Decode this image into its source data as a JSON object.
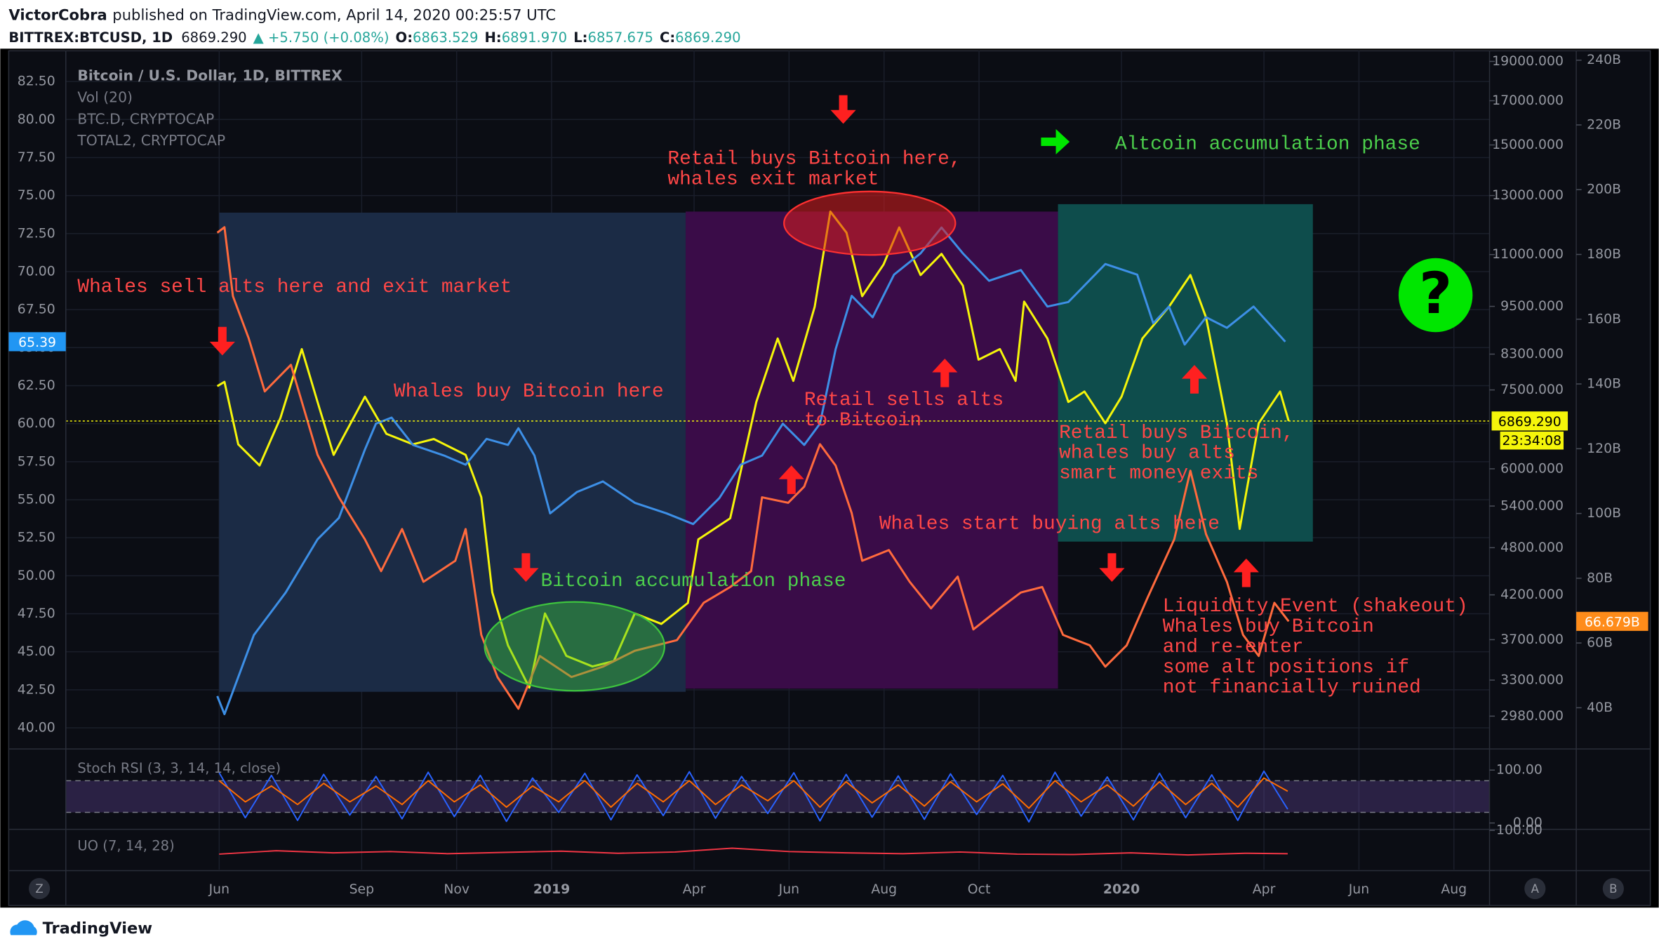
{
  "header": {
    "author": "VictorCobra",
    "published": "published on TradingView.com, April 14, 2020 00:25:57 UTC",
    "symbol": "BITTREX:BTCUSD, 1D",
    "last": "6869.290",
    "change": "▲ +5.750 (+0.08%)",
    "ohlc": [
      {
        "label": "O:",
        "value": "6863.529"
      },
      {
        "label": "H:",
        "value": "6891.970"
      },
      {
        "label": "L:",
        "value": "6857.675"
      },
      {
        "label": "C:",
        "value": "6869.290"
      }
    ]
  },
  "controls": [
    "Z",
    "A",
    "B"
  ],
  "footer": {
    "logo": "TradingView"
  },
  "chart_data": [
    {
      "type": "line",
      "grid": true,
      "volume_label": "Vol (20)",
      "countdown": "23:34:08",
      "badge": "?",
      "xlim": [
        1.77,
        31.75
      ],
      "xticks": [
        {
          "value": 5,
          "label": "Jun"
        },
        {
          "value": 8,
          "label": "Sep"
        },
        {
          "value": 10,
          "label": "Nov"
        },
        {
          "value": 12,
          "label": "2019"
        },
        {
          "value": 15,
          "label": "Apr"
        },
        {
          "value": 17,
          "label": "Jun"
        },
        {
          "value": 19,
          "label": "Aug"
        },
        {
          "value": 21,
          "label": "Oct"
        },
        {
          "value": 24,
          "label": "2020"
        },
        {
          "value": 27,
          "label": "Apr"
        },
        {
          "value": 29,
          "label": "Jun"
        },
        {
          "value": 31,
          "label": "Aug"
        }
      ],
      "ylim": [
        38.68,
        84.52
      ],
      "yticks": [
        {
          "value": 82.5,
          "label": "82.50"
        },
        {
          "value": 80,
          "label": "80.00"
        },
        {
          "value": 77.5,
          "label": "77.50"
        },
        {
          "value": 75,
          "label": "75.00"
        },
        {
          "value": 72.5,
          "label": "72.50"
        },
        {
          "value": 70,
          "label": "70.00"
        },
        {
          "value": 67.5,
          "label": "67.50"
        },
        {
          "value": 65,
          "label": "65.00"
        },
        {
          "value": 62.5,
          "label": "62.50"
        },
        {
          "value": 60,
          "label": "60.00"
        },
        {
          "value": 57.5,
          "label": "57.50"
        },
        {
          "value": 55,
          "label": "55.00"
        },
        {
          "value": 52.5,
          "label": "52.50"
        },
        {
          "value": 50,
          "label": "50.00"
        },
        {
          "value": 47.5,
          "label": "47.50"
        },
        {
          "value": 45,
          "label": "45.00"
        },
        {
          "value": 42.5,
          "label": "42.50"
        },
        {
          "value": 40,
          "label": "40.00"
        }
      ],
      "y2lim": [
        2724,
        19580
      ],
      "y2log": true,
      "y2ticks": [
        {
          "value": 19000,
          "label": "19000.000"
        },
        {
          "value": 17000,
          "label": "17000.000"
        },
        {
          "value": 15000,
          "label": "15000.000"
        },
        {
          "value": 13000,
          "label": "13000.000"
        },
        {
          "value": 11000,
          "label": "11000.000"
        },
        {
          "value": 9500,
          "label": "9500.000"
        },
        {
          "value": 8300,
          "label": "8300.000"
        },
        {
          "value": 7500,
          "label": "7500.000"
        },
        {
          "value": 6000,
          "label": "6000.000"
        },
        {
          "value": 5400,
          "label": "5400.000"
        },
        {
          "value": 4800,
          "label": "4800.000"
        },
        {
          "value": 4200,
          "label": "4200.000"
        },
        {
          "value": 3700,
          "label": "3700.000"
        },
        {
          "value": 3300,
          "label": "3300.000"
        },
        {
          "value": 2980,
          "label": "2980.000"
        }
      ],
      "y3lim": [
        27.6,
        242.9
      ],
      "y3ticks": [
        {
          "value": 240,
          "label": "240B"
        },
        {
          "value": 220,
          "label": "220B"
        },
        {
          "value": 200,
          "label": "200B"
        },
        {
          "value": 180,
          "label": "180B"
        },
        {
          "value": 160,
          "label": "160B"
        },
        {
          "value": 140,
          "label": "140B"
        },
        {
          "value": 120,
          "label": "120B"
        },
        {
          "value": 100,
          "label": "100B"
        },
        {
          "value": 80,
          "label": "80B"
        },
        {
          "value": 60,
          "label": "60B"
        },
        {
          "value": 40,
          "label": "40B"
        }
      ],
      "series": [
        {
          "name": "Bitcoin / U.S. Dollar, 1D, BITTREX",
          "color": "#f5f50a",
          "axis": "y2",
          "price_line": true,
          "x": [
            4.96,
            5.11,
            5.4,
            5.85,
            6.29,
            6.74,
            7.07,
            7.41,
            8.07,
            8.52,
            9.08,
            9.52,
            10.19,
            10.52,
            10.75,
            11.08,
            11.53,
            11.86,
            12.31,
            12.86,
            13.31,
            13.75,
            14.31,
            14.87,
            15.09,
            15.76,
            16.31,
            16.76,
            17.09,
            17.54,
            17.87,
            18.21,
            18.54,
            18.99,
            19.32,
            19.77,
            20.21,
            20.66,
            20.99,
            21.44,
            21.77,
            21.95,
            22.44,
            22.88,
            23.22,
            23.66,
            24.0,
            24.44,
            25.0,
            25.45,
            25.78,
            26.22,
            26.49,
            26.89,
            27.34,
            27.52
          ],
          "values": [
            7581,
            7672,
            6430,
            6057,
            6929,
            8419,
            7248,
            6241,
            7357,
            6625,
            6430,
            6527,
            6241,
            5537,
            4229,
            3642,
            3231,
            3985,
            3534,
            3430,
            3482,
            3985,
            3868,
            4105,
            4913,
            5216,
            7248,
            8674,
            7694,
            9489,
            12424,
            11703,
            9777,
            10696,
            11879,
            10380,
            11021,
            10074,
            8170,
            8419,
            7694,
            9629,
            8674,
            7248,
            7467,
            6826,
            7357,
            8674,
            9489,
            10380,
            9207,
            6826,
            5062,
            6826,
            7467,
            6869.29
          ],
          "value_labels": [
            null,
            null,
            null,
            null,
            null,
            null,
            null,
            null,
            null,
            null,
            null,
            null,
            null,
            null,
            null,
            null,
            null,
            null,
            null,
            null,
            null,
            null,
            null,
            null,
            null,
            null,
            null,
            null,
            null,
            null,
            null,
            null,
            null,
            null,
            null,
            null,
            null,
            null,
            null,
            null,
            null,
            null,
            null,
            null,
            null,
            null,
            null,
            null,
            null,
            null,
            null,
            null,
            null,
            null,
            null,
            "6869.290"
          ]
        },
        {
          "name": "BTC.D, CRYPTOCAP",
          "color": "#3d8fe6",
          "axis": "y",
          "x": [
            4.96,
            5.11,
            5.73,
            6.4,
            7.07,
            7.52,
            8.07,
            8.3,
            8.63,
            9.08,
            9.74,
            10.19,
            10.63,
            11.08,
            11.3,
            11.64,
            11.97,
            12.53,
            13.08,
            13.75,
            14.42,
            14.98,
            15.53,
            15.98,
            16.43,
            16.87,
            17.32,
            17.65,
            17.98,
            18.32,
            18.76,
            19.21,
            19.77,
            20.21,
            20.66,
            21.21,
            21.88,
            22.44,
            22.88,
            23.66,
            24.33,
            24.67,
            25.0,
            25.33,
            25.78,
            26.22,
            26.78,
            27.45
          ],
          "values": [
            42.09,
            40.9,
            46.1,
            48.9,
            52.4,
            53.8,
            58.3,
            60.0,
            60.4,
            58.6,
            57.9,
            57.3,
            59.0,
            58.6,
            59.7,
            57.9,
            54.1,
            55.5,
            56.2,
            54.8,
            54.1,
            53.4,
            55.1,
            57.3,
            57.9,
            60.0,
            58.6,
            60.0,
            64.9,
            68.4,
            67.0,
            69.8,
            71.2,
            72.9,
            71.2,
            69.4,
            70.1,
            67.7,
            68.0,
            70.5,
            69.8,
            66.6,
            67.7,
            65.2,
            67.0,
            66.3,
            67.7,
            65.39
          ]
        },
        {
          "name": "TOTAL2, CRYPTOCAP",
          "color": "#ff6a3d",
          "axis": "y3",
          "x": [
            4.96,
            5.11,
            5.29,
            5.62,
            5.96,
            6.51,
            7.07,
            7.52,
            8.07,
            8.41,
            8.85,
            9.3,
            9.97,
            10.19,
            10.52,
            10.86,
            11.3,
            11.75,
            12.42,
            13.08,
            13.75,
            14.64,
            15.2,
            15.76,
            16.2,
            16.43,
            16.98,
            17.32,
            17.65,
            17.98,
            18.32,
            18.54,
            19.1,
            19.54,
            19.99,
            20.55,
            20.88,
            21.44,
            21.88,
            22.33,
            22.77,
            23.33,
            23.66,
            24.11,
            24.55,
            25.11,
            25.45,
            25.78,
            26.22,
            26.56,
            26.89,
            27.22,
            27.52
          ],
          "values": [
            186.7,
            188.4,
            167.1,
            154.1,
            137.7,
            145.9,
            118.1,
            105.0,
            92.0,
            82.2,
            95.2,
            78.9,
            85.4,
            95.2,
            62.5,
            49.5,
            39.7,
            56.0,
            49.5,
            52.7,
            57.6,
            60.9,
            72.4,
            77.3,
            82.2,
            105.0,
            103.3,
            108.3,
            121.4,
            114.8,
            100.1,
            85.4,
            88.7,
            78.9,
            70.7,
            80.5,
            64.2,
            70.7,
            75.6,
            77.3,
            62.5,
            59.3,
            52.7,
            59.3,
            74.0,
            92.0,
            113.2,
            93.6,
            78.9,
            62.5,
            56.0,
            72.4,
            66.679
          ],
          "value_labels": [
            null,
            null,
            null,
            null,
            null,
            null,
            null,
            null,
            null,
            null,
            null,
            null,
            null,
            null,
            null,
            null,
            null,
            null,
            null,
            null,
            null,
            null,
            null,
            null,
            null,
            null,
            null,
            null,
            null,
            null,
            null,
            null,
            null,
            null,
            null,
            null,
            null,
            null,
            null,
            null,
            null,
            null,
            null,
            null,
            null,
            null,
            null,
            null,
            null,
            null,
            null,
            null,
            "66.679B"
          ]
        }
      ],
      "annotations": [
        {
          "lines": [
            "Whales sell alts here and exit market"
          ],
          "color": "#ff4747"
        },
        {
          "lines": [
            "Whales buy Bitcoin here"
          ],
          "color": "#ff4747"
        },
        {
          "lines": [
            "Retail buys Bitcoin here,",
            "whales exit market"
          ],
          "color": "#ff4747"
        },
        {
          "lines": [
            "Retail sells alts",
            "to Bitcoin"
          ],
          "color": "#ff4747"
        },
        {
          "lines": [
            "Altcoin accumulation phase"
          ],
          "color": "#4ccf4c"
        },
        {
          "lines": [
            "Bitcoin accumulation phase"
          ],
          "color": "#4ccf4c"
        },
        {
          "lines": [
            "Whales start buying alts here"
          ],
          "color": "#ff4747"
        },
        {
          "lines": [
            "Retail buys Bitcoin,",
            "whales buy alts",
            "smart money exits"
          ],
          "color": "#ff4747"
        },
        {
          "lines": [
            "Liquidity Event (shakeout)",
            "Whales buy Bitcoin",
            "and re-enter",
            "some alt positions if",
            "not financially ruined"
          ],
          "color": "#ff4747"
        }
      ]
    },
    {
      "type": "line",
      "title": "Stoch RSI (3, 3, 14, 14, close)",
      "xlim": [
        1.77,
        31.75
      ],
      "ylim": [
        -10,
        132
      ],
      "yticks": [
        {
          "value": 100,
          "label": "100.00"
        },
        {
          "value": 0,
          "label": "0.00"
        }
      ],
      "bands": [
        20,
        80
      ],
      "x": [
        5.0,
        5.55,
        6.1,
        6.65,
        7.2,
        7.75,
        8.3,
        8.85,
        9.4,
        9.95,
        10.5,
        11.05,
        11.6,
        12.15,
        12.7,
        13.25,
        13.8,
        14.35,
        14.9,
        15.45,
        16.0,
        16.55,
        17.1,
        17.65,
        18.2,
        18.75,
        19.3,
        19.85,
        20.4,
        20.95,
        21.5,
        22.05,
        22.6,
        23.15,
        23.7,
        24.25,
        24.8,
        25.35,
        25.9,
        26.45,
        27.0,
        27.5
      ],
      "series": [
        {
          "color": "#2962ff",
          "values": [
            95,
            10,
            90,
            5,
            92,
            15,
            88,
            8,
            96,
            12,
            90,
            3,
            85,
            20,
            94,
            6,
            91,
            14,
            97,
            9,
            88,
            18,
            95,
            4,
            92,
            11,
            89,
            7,
            93,
            16,
            90,
            2,
            96,
            13,
            87,
            6,
            94,
            10,
            91,
            5,
            98,
            26
          ]
        },
        {
          "color": "#ff6d00",
          "values": [
            80,
            40,
            70,
            35,
            75,
            40,
            70,
            35,
            80,
            40,
            72,
            30,
            70,
            40,
            80,
            30,
            75,
            40,
            80,
            35,
            72,
            42,
            80,
            30,
            78,
            38,
            72,
            32,
            78,
            40,
            74,
            28,
            80,
            40,
            72,
            32,
            78,
            35,
            75,
            30,
            85,
            60
          ]
        }
      ]
    },
    {
      "type": "line",
      "title": "UO (7, 14, 28)",
      "xlim": [
        1.77,
        31.75
      ],
      "ylim": [
        7.5,
        100
      ],
      "yticks": [
        {
          "value": 100,
          "label": "100.00"
        }
      ],
      "x": [
        5,
        6.2,
        7.4,
        8.6,
        9.8,
        11,
        12.2,
        13.4,
        14.6,
        15.8,
        17,
        18.2,
        19.4,
        20.6,
        21.8,
        23,
        24.2,
        25.4,
        26.6,
        27.5
      ],
      "series": [
        {
          "color": "#f23645",
          "values": [
            44,
            52,
            47,
            50,
            45,
            48,
            51,
            46,
            49,
            58,
            50,
            47,
            45,
            49,
            44,
            43,
            47,
            42,
            46,
            45
          ]
        }
      ]
    }
  ]
}
